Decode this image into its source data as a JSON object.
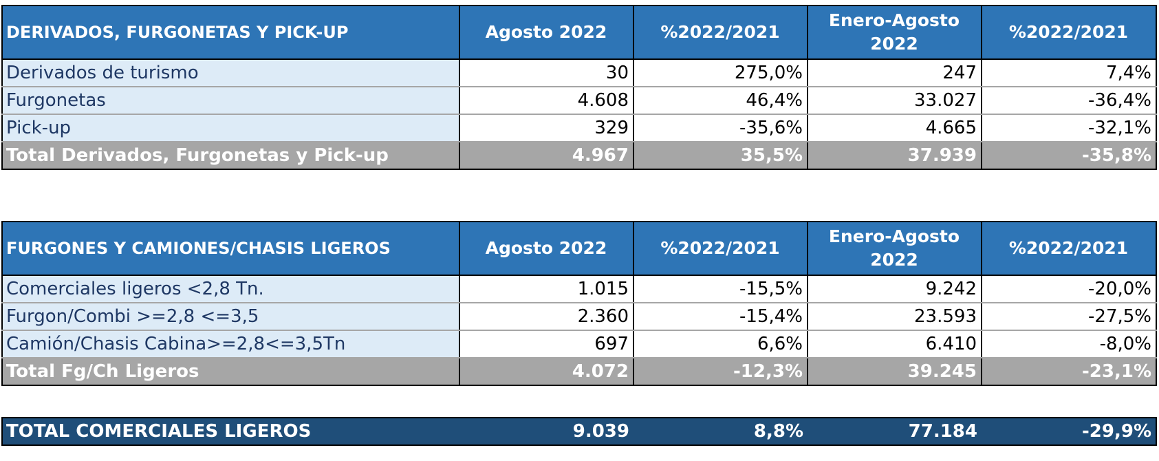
{
  "table1": {
    "headers": [
      "DERIVADOS, FURGONETAS Y PICK-UP",
      "Agosto 2022",
      "%2022/2021",
      "Enero-Agosto 2022",
      "%2022/2021"
    ],
    "rows": [
      [
        "Derivados de turismo",
        "30",
        "275,0%",
        "247",
        "7,4%"
      ],
      [
        "Furgonetas",
        "4.608",
        "46,4%",
        "33.027",
        "-36,4%"
      ],
      [
        "Pick-up",
        "329",
        "-35,6%",
        "4.665",
        "-32,1%"
      ]
    ],
    "total": [
      "Total Derivados, Furgonetas y Pick-up",
      "4.967",
      "35,5%",
      "37.939",
      "-35,8%"
    ]
  },
  "table2": {
    "headers": [
      "FURGONES Y CAMIONES/CHASIS LIGEROS",
      "Agosto 2022",
      "%2022/2021",
      "Enero-Agosto 2022",
      "%2022/2021"
    ],
    "rows": [
      [
        "Comerciales ligeros <2,8 Tn.",
        "1.015",
        "-15,5%",
        "9.242",
        "-20,0%"
      ],
      [
        "Furgon/Combi >=2,8 <=3,5",
        "2.360",
        "-15,4%",
        "23.593",
        "-27,5%"
      ],
      [
        "Camión/Chasis Cabina>=2,8<=3,5Tn",
        "697",
        "6,6%",
        "6.410",
        "-8,0%"
      ]
    ],
    "total": [
      "Total Fg/Ch Ligeros",
      "4.072",
      "-12,3%",
      "39.245",
      "-23,1%"
    ]
  },
  "grand_total": [
    "TOTAL COMERCIALES LIGEROS",
    "9.039",
    "8,8%",
    "77.184",
    "-29,9%"
  ],
  "colors": {
    "header_blue": "#2e75b6",
    "label_light_blue": "#ddebf7",
    "total_gray": "#a6a6a6",
    "grand_total_navy": "#1f4e79"
  }
}
